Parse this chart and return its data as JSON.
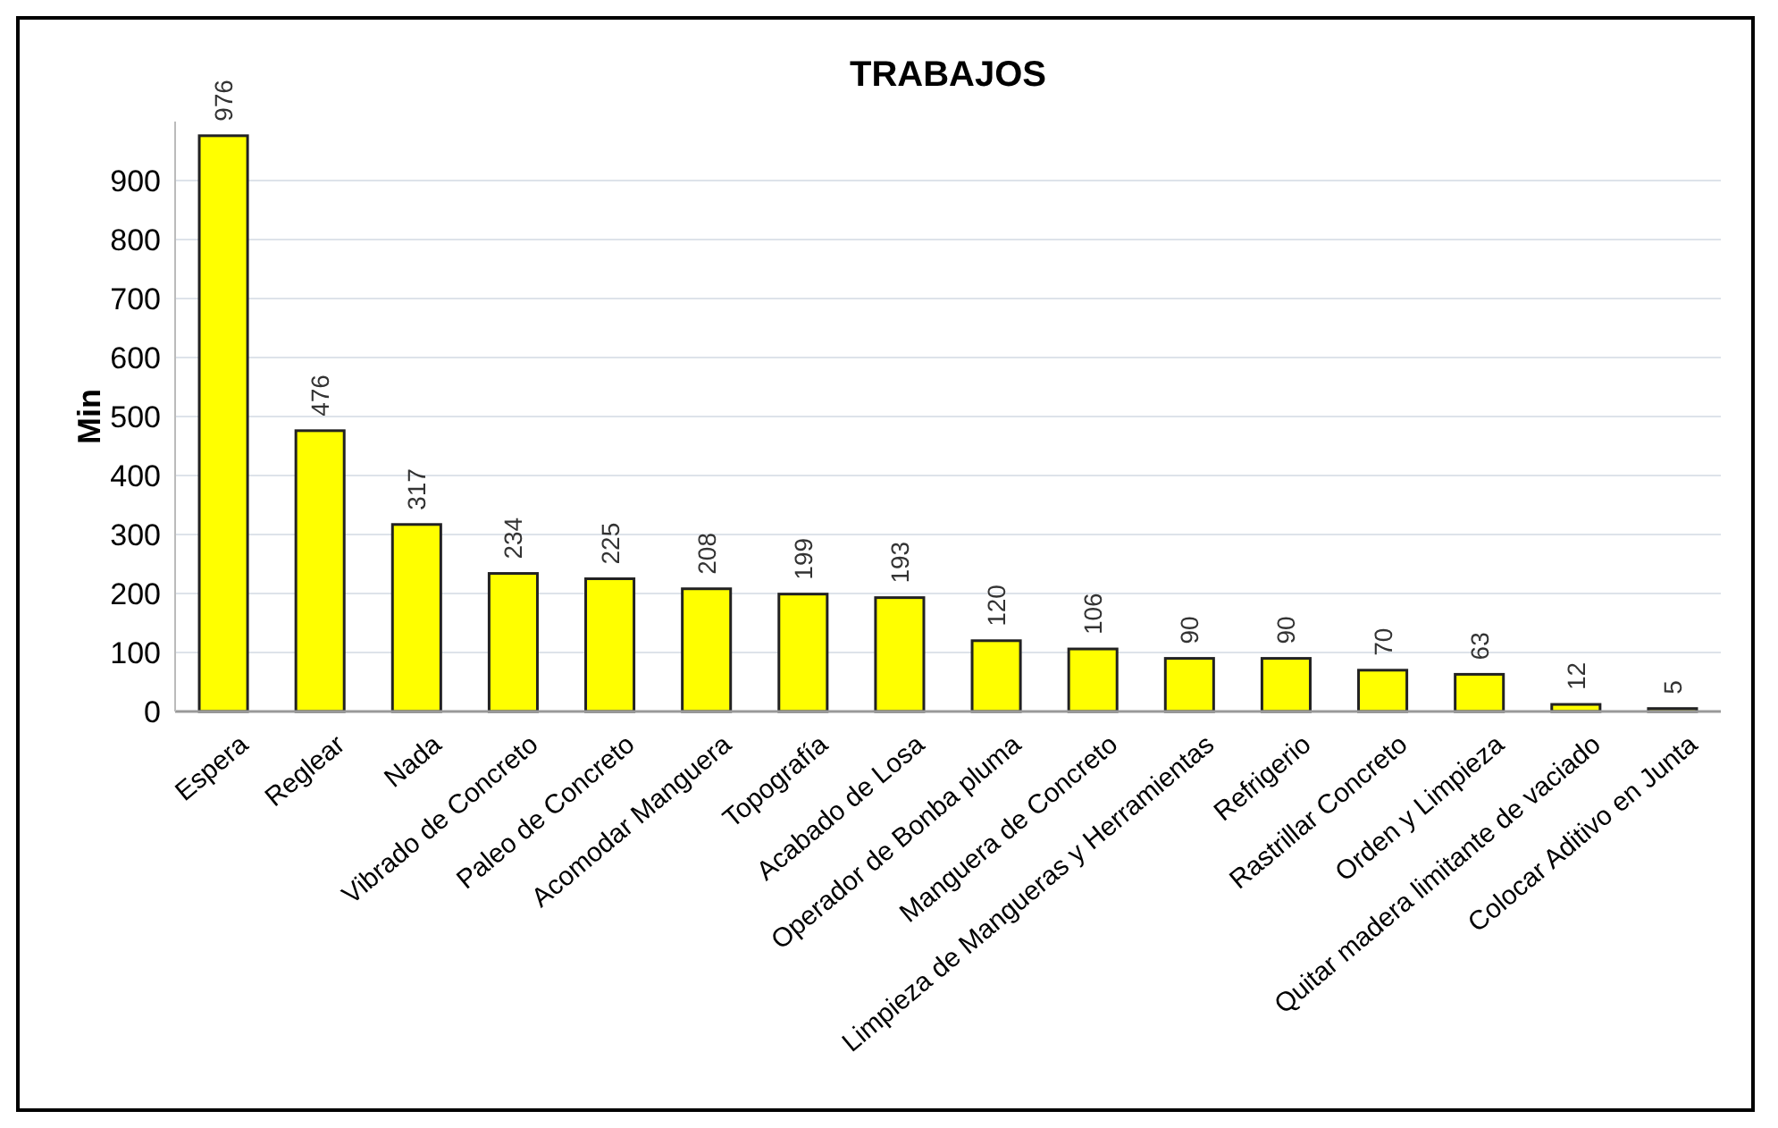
{
  "chart_data": {
    "type": "bar",
    "title": "TRABAJOS",
    "ylabel": "Min",
    "categories": [
      "Espera",
      "Reglear",
      "Nada",
      "Vibrado de Concreto",
      "Paleo de Concreto",
      "Acomodar Manguera",
      "Topografía",
      "Acabado de Losa",
      "Operador de Bonba pluma",
      "Manguera de Concreto",
      "Limpieza de Mangueras y Herramientas",
      "Refrigerio",
      "Rastrillar Concreto",
      "Orden y Limpieza",
      "Quitar madera limitante de vaciado",
      "Colocar Aditivo en Junta"
    ],
    "values": [
      976,
      476,
      317,
      234,
      225,
      208,
      199,
      193,
      120,
      106,
      90,
      90,
      70,
      63,
      12,
      5
    ],
    "color": "#ffff00",
    "ylim": [
      0,
      1000
    ],
    "yticks": [
      0,
      100,
      200,
      300,
      400,
      500,
      600,
      700,
      800,
      900
    ],
    "grid": "y",
    "data_labels": true
  }
}
